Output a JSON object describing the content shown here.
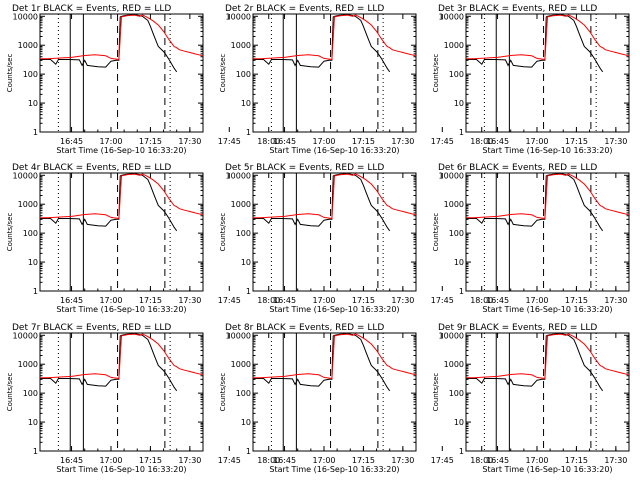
{
  "figure": {
    "xlabel": "Start Time (16-Sep-10 16:33:20)",
    "ylabel": "Counts/sec",
    "colors": {
      "events": "#000000",
      "lld": "#ff0000",
      "axes": "#000000"
    }
  },
  "chart_data": [
    {
      "type": "line",
      "title": "Det 1r BLACK = Events, RED = LLD",
      "xlabel": "Start Time (16-Sep-10 16:33:20)",
      "ylabel": "Counts/sec",
      "ylog": true,
      "ylim": [
        1,
        12000
      ],
      "xlim_min": [
        33,
        95
      ],
      "x_ticks": [
        "16:45",
        "17:00",
        "17:15",
        "17:30",
        "17:45",
        "18:00"
      ],
      "y_ticks": [
        "1",
        "10",
        "100",
        "1000",
        "10000"
      ],
      "series": [
        {
          "name": "Events",
          "color": "#000000"
        },
        {
          "name": "LLD",
          "color": "#ff0000"
        }
      ]
    },
    {
      "type": "line",
      "title": "Det 2r BLACK = Events, RED = LLD",
      "xlabel": "Start Time (16-Sep-10 16:33:20)",
      "ylabel": "Counts/sec",
      "ylog": true,
      "ylim": [
        1,
        12000
      ],
      "xlim_min": [
        33,
        95
      ],
      "x_ticks": [
        "16:45",
        "17:00",
        "17:15",
        "17:30",
        "17:45",
        "18:00"
      ],
      "y_ticks": [
        "1",
        "10",
        "100",
        "1000",
        "10000"
      ],
      "series": [
        {
          "name": "Events",
          "color": "#000000"
        },
        {
          "name": "LLD",
          "color": "#ff0000"
        }
      ]
    },
    {
      "type": "line",
      "title": "Det 3r BLACK = Events, RED = LLD",
      "xlabel": "Start Time (16-Sep-10 16:33:20)",
      "ylabel": "Counts/sec",
      "ylog": true,
      "ylim": [
        1,
        12000
      ],
      "xlim_min": [
        33,
        95
      ],
      "x_ticks": [
        "16:45",
        "17:00",
        "17:15",
        "17:30",
        "17:45",
        "18:00"
      ],
      "y_ticks": [
        "1",
        "10",
        "100",
        "1000",
        "10000"
      ],
      "series": [
        {
          "name": "Events",
          "color": "#000000"
        },
        {
          "name": "LLD",
          "color": "#ff0000"
        }
      ]
    },
    {
      "type": "line",
      "title": "Det 4r BLACK = Events, RED = LLD",
      "xlabel": "Start Time (16-Sep-10 16:33:20)",
      "ylabel": "Counts/sec",
      "ylog": true,
      "ylim": [
        1,
        12000
      ],
      "xlim_min": [
        33,
        95
      ],
      "x_ticks": [
        "16:45",
        "17:00",
        "17:15",
        "17:30",
        "17:45",
        "18:00"
      ],
      "y_ticks": [
        "1",
        "10",
        "100",
        "1000",
        "10000"
      ],
      "series": [
        {
          "name": "Events",
          "color": "#000000"
        },
        {
          "name": "LLD",
          "color": "#ff0000"
        }
      ]
    },
    {
      "type": "line",
      "title": "Det 5r BLACK = Events, RED = LLD",
      "xlabel": "Start Time (16-Sep-10 16:33:20)",
      "ylabel": "Counts/sec",
      "ylog": true,
      "ylim": [
        1,
        12000
      ],
      "xlim_min": [
        33,
        95
      ],
      "x_ticks": [
        "16:45",
        "17:00",
        "17:15",
        "17:30",
        "17:45",
        "18:00"
      ],
      "y_ticks": [
        "1",
        "10",
        "100",
        "1000",
        "10000"
      ],
      "series": [
        {
          "name": "Events",
          "color": "#000000"
        },
        {
          "name": "LLD",
          "color": "#ff0000"
        }
      ]
    },
    {
      "type": "line",
      "title": "Det 6r BLACK = Events, RED = LLD",
      "xlabel": "Start Time (16-Sep-10 16:33:20)",
      "ylabel": "Counts/sec",
      "ylog": true,
      "ylim": [
        1,
        12000
      ],
      "xlim_min": [
        33,
        95
      ],
      "x_ticks": [
        "16:45",
        "17:00",
        "17:15",
        "17:30",
        "17:45",
        "18:00"
      ],
      "y_ticks": [
        "1",
        "10",
        "100",
        "1000",
        "10000"
      ],
      "series": [
        {
          "name": "Events",
          "color": "#000000"
        },
        {
          "name": "LLD",
          "color": "#ff0000"
        }
      ]
    },
    {
      "type": "line",
      "title": "Det 7r BLACK = Events, RED = LLD",
      "xlabel": "Start Time (16-Sep-10 16:33:20)",
      "ylabel": "Counts/sec",
      "ylog": true,
      "ylim": [
        1,
        12000
      ],
      "xlim_min": [
        33,
        95
      ],
      "x_ticks": [
        "16:45",
        "17:00",
        "17:15",
        "17:30",
        "17:45",
        "18:00"
      ],
      "y_ticks": [
        "1",
        "10",
        "100",
        "1000",
        "10000"
      ],
      "series": [
        {
          "name": "Events",
          "color": "#000000"
        },
        {
          "name": "LLD",
          "color": "#ff0000"
        }
      ]
    },
    {
      "type": "line",
      "title": "Det 8r BLACK = Events, RED = LLD",
      "xlabel": "Start Time (16-Sep-10 16:33:20)",
      "ylabel": "Counts/sec",
      "ylog": true,
      "ylim": [
        1,
        12000
      ],
      "xlim_min": [
        33,
        95
      ],
      "x_ticks": [
        "16:45",
        "17:00",
        "17:15",
        "17:30",
        "17:45",
        "18:00"
      ],
      "y_ticks": [
        "1",
        "10",
        "100",
        "1000",
        "10000"
      ],
      "series": [
        {
          "name": "Events",
          "color": "#000000"
        },
        {
          "name": "LLD",
          "color": "#ff0000"
        }
      ]
    },
    {
      "type": "line",
      "title": "Det 9r BLACK = Events, RED = LLD",
      "xlabel": "Start Time (16-Sep-10 16:33:20)",
      "ylabel": "Counts/sec",
      "ylog": true,
      "ylim": [
        1,
        12000
      ],
      "xlim_min": [
        33,
        95
      ],
      "x_ticks": [
        "16:45",
        "17:00",
        "17:15",
        "17:30",
        "17:45",
        "18:00"
      ],
      "y_ticks": [
        "1",
        "10",
        "100",
        "1000",
        "10000"
      ],
      "series": [
        {
          "name": "Events",
          "color": "#000000"
        },
        {
          "name": "LLD",
          "color": "#ff0000"
        }
      ]
    }
  ],
  "shared_series": {
    "lld": {
      "name": "LLD",
      "x_min": [
        33,
        36,
        40,
        45,
        50,
        54,
        58,
        60,
        63,
        64,
        66,
        69,
        71,
        72,
        74,
        76,
        78,
        80,
        82,
        84,
        85,
        86,
        88,
        90,
        92,
        94,
        95
      ],
      "y": [
        340,
        340,
        360,
        380,
        440,
        470,
        430,
        350,
        320,
        9500,
        10500,
        11000,
        10000,
        11200,
        9000,
        7000,
        5000,
        3000,
        1600,
        900,
        820,
        700,
        620,
        560,
        500,
        450,
        420
      ]
    },
    "events": {
      "name": "Events",
      "x_min": [
        33,
        37,
        39,
        40,
        44,
        48,
        49,
        50,
        51,
        52,
        55,
        58,
        60,
        62,
        63,
        63.5,
        64,
        65,
        66,
        67,
        68,
        70,
        72,
        74,
        75,
        76,
        77,
        78,
        80,
        81,
        82,
        83,
        84,
        85
      ],
      "y": [
        320,
        320,
        220,
        320,
        320,
        310,
        200,
        300,
        200,
        195,
        180,
        175,
        280,
        300,
        300,
        9500,
        10000,
        10500,
        10800,
        11000,
        11200,
        11000,
        10000,
        7200,
        4500,
        2600,
        1500,
        900,
        600,
        450,
        330,
        230,
        160,
        120
      ]
    },
    "solid_lines_min": [
      44.5,
      49.5
    ],
    "dotted_lines_min": [
      40,
      82.5
    ],
    "dashed_lines_min": [
      62.5,
      80.5
    ]
  }
}
